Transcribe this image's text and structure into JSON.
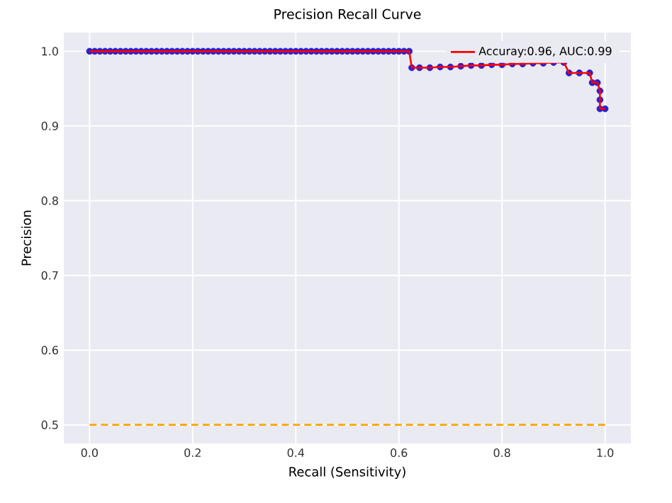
{
  "chart_data": {
    "type": "line",
    "title": "Precision Recall Curve",
    "xlabel": "Recall (Sensitivity)",
    "ylabel": "Precision",
    "xlim": [
      -0.05,
      1.05
    ],
    "ylim": [
      0.475,
      1.025
    ],
    "xticks": [
      {
        "value": 0,
        "label": "0.0"
      },
      {
        "value": 0.2,
        "label": "0.2"
      },
      {
        "value": 0.4,
        "label": "0.4"
      },
      {
        "value": 0.6,
        "label": "0.6"
      },
      {
        "value": 0.8,
        "label": "0.8"
      },
      {
        "value": 1,
        "label": "1.0"
      }
    ],
    "yticks": [
      {
        "value": 0.5,
        "label": "0.5"
      },
      {
        "value": 0.6,
        "label": "0.6"
      },
      {
        "value": 0.7,
        "label": "0.7"
      },
      {
        "value": 0.8,
        "label": "0.8"
      },
      {
        "value": 0.9,
        "label": "0.9"
      },
      {
        "value": 1,
        "label": "1.0"
      }
    ],
    "grid": true,
    "legend": "top right",
    "series": [
      {
        "type": "scatter",
        "color": "#2a1fd0",
        "marker": "circle",
        "x": [
          0,
          0.01,
          0.02,
          0.03,
          0.04,
          0.05,
          0.06,
          0.07,
          0.08,
          0.09,
          0.1,
          0.11,
          0.12,
          0.13,
          0.14,
          0.15,
          0.16,
          0.17,
          0.18,
          0.19,
          0.2,
          0.21,
          0.22,
          0.23,
          0.24,
          0.25,
          0.26,
          0.27,
          0.28,
          0.29,
          0.3,
          0.31,
          0.32,
          0.33,
          0.34,
          0.35,
          0.36,
          0.37,
          0.38,
          0.39,
          0.4,
          0.41,
          0.42,
          0.43,
          0.44,
          0.45,
          0.46,
          0.47,
          0.48,
          0.49,
          0.5,
          0.51,
          0.52,
          0.53,
          0.54,
          0.55,
          0.56,
          0.57,
          0.58,
          0.59,
          0.6,
          0.61,
          0.62,
          0.625,
          0.64,
          0.66,
          0.68,
          0.7,
          0.72,
          0.74,
          0.76,
          0.78,
          0.8,
          0.82,
          0.84,
          0.86,
          0.88,
          0.9,
          0.92,
          0.93,
          0.95,
          0.97,
          0.975,
          0.985,
          0.99,
          0.99,
          0.99,
          1.0
        ],
        "values": [
          1,
          1,
          1,
          1,
          1,
          1,
          1,
          1,
          1,
          1,
          1,
          1,
          1,
          1,
          1,
          1,
          1,
          1,
          1,
          1,
          1,
          1,
          1,
          1,
          1,
          1,
          1,
          1,
          1,
          1,
          1,
          1,
          1,
          1,
          1,
          1,
          1,
          1,
          1,
          1,
          1,
          1,
          1,
          1,
          1,
          1,
          1,
          1,
          1,
          1,
          1,
          1,
          1,
          1,
          1,
          1,
          1,
          1,
          1,
          1,
          1,
          1,
          1,
          0.978,
          0.978,
          0.978,
          0.979,
          0.979,
          0.98,
          0.981,
          0.981,
          0.982,
          0.982,
          0.983,
          0.983,
          0.984,
          0.984,
          0.985,
          0.985,
          0.971,
          0.971,
          0.971,
          0.958,
          0.958,
          0.947,
          0.935,
          0.923,
          0.923
        ]
      },
      {
        "name": "Accuray:0.96, AUC:0.99",
        "color": "#ff0000",
        "marker": "none",
        "line_style": "solid",
        "x": [
          0,
          0.01,
          0.02,
          0.03,
          0.04,
          0.05,
          0.06,
          0.07,
          0.08,
          0.09,
          0.1,
          0.11,
          0.12,
          0.13,
          0.14,
          0.15,
          0.16,
          0.17,
          0.18,
          0.19,
          0.2,
          0.21,
          0.22,
          0.23,
          0.24,
          0.25,
          0.26,
          0.27,
          0.28,
          0.29,
          0.3,
          0.31,
          0.32,
          0.33,
          0.34,
          0.35,
          0.36,
          0.37,
          0.38,
          0.39,
          0.4,
          0.41,
          0.42,
          0.43,
          0.44,
          0.45,
          0.46,
          0.47,
          0.48,
          0.49,
          0.5,
          0.51,
          0.52,
          0.53,
          0.54,
          0.55,
          0.56,
          0.57,
          0.58,
          0.59,
          0.6,
          0.61,
          0.62,
          0.625,
          0.64,
          0.66,
          0.68,
          0.7,
          0.72,
          0.74,
          0.76,
          0.78,
          0.8,
          0.82,
          0.84,
          0.86,
          0.88,
          0.9,
          0.92,
          0.93,
          0.95,
          0.97,
          0.975,
          0.985,
          0.99,
          0.99,
          0.99,
          1.0
        ],
        "values": [
          1,
          1,
          1,
          1,
          1,
          1,
          1,
          1,
          1,
          1,
          1,
          1,
          1,
          1,
          1,
          1,
          1,
          1,
          1,
          1,
          1,
          1,
          1,
          1,
          1,
          1,
          1,
          1,
          1,
          1,
          1,
          1,
          1,
          1,
          1,
          1,
          1,
          1,
          1,
          1,
          1,
          1,
          1,
          1,
          1,
          1,
          1,
          1,
          1,
          1,
          1,
          1,
          1,
          1,
          1,
          1,
          1,
          1,
          1,
          1,
          1,
          1,
          1,
          0.978,
          0.978,
          0.978,
          0.979,
          0.979,
          0.98,
          0.981,
          0.981,
          0.982,
          0.982,
          0.983,
          0.983,
          0.984,
          0.984,
          0.985,
          0.985,
          0.971,
          0.971,
          0.971,
          0.958,
          0.958,
          0.947,
          0.935,
          0.923,
          0.923
        ]
      },
      {
        "color": "#ffa500",
        "marker": "none",
        "line_style": "dashed",
        "x": [
          0,
          1
        ],
        "values": [
          0.5,
          0.5
        ]
      }
    ]
  }
}
